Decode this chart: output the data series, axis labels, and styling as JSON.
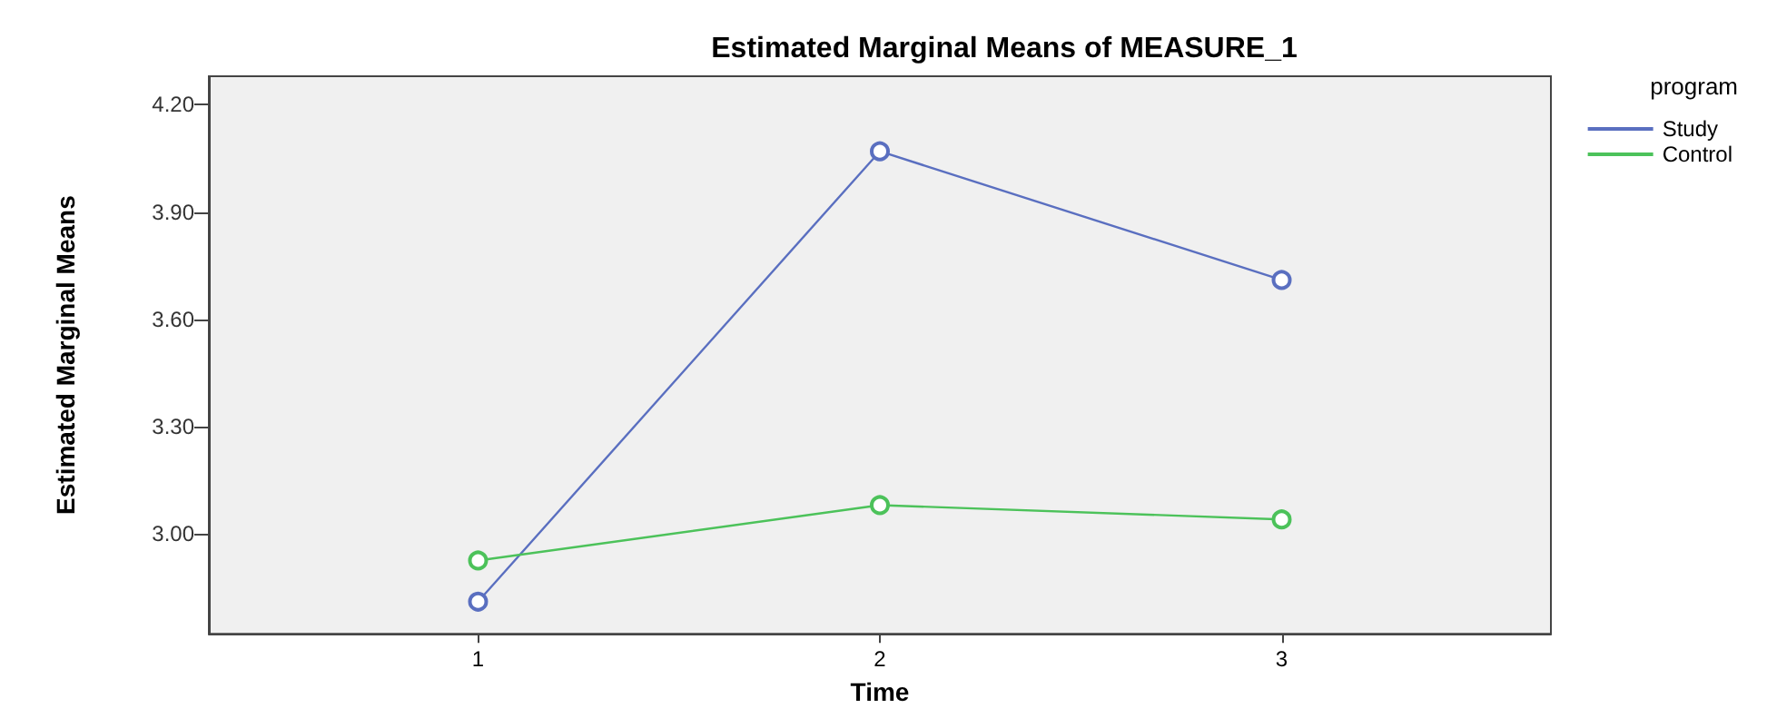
{
  "chart_data": {
    "type": "line",
    "title": "Estimated Marginal Means of MEASURE_1",
    "xlabel": "Time",
    "ylabel": "Estimated Marginal Means",
    "legend_title": "program",
    "x": [
      1,
      2,
      3
    ],
    "xlim": [
      0.33,
      3.67
    ],
    "xticks": [
      1,
      2,
      3
    ],
    "ylim": [
      2.72,
      4.28
    ],
    "yticks": [
      {
        "value": 3.0,
        "label": "3.00"
      },
      {
        "value": 3.3,
        "label": "3.30"
      },
      {
        "value": 3.6,
        "label": "3.60"
      },
      {
        "value": 3.9,
        "label": "3.90"
      },
      {
        "value": 4.2,
        "label": "4.20"
      }
    ],
    "series": [
      {
        "name": "Study",
        "color": "#5a6fc0",
        "values": [
          2.81,
          4.07,
          3.71
        ]
      },
      {
        "name": "Control",
        "color": "#4cc25a",
        "values": [
          2.925,
          3.08,
          3.04
        ]
      }
    ],
    "marker": "circle",
    "line_style": "solid",
    "grid": false,
    "legend": "top right"
  }
}
